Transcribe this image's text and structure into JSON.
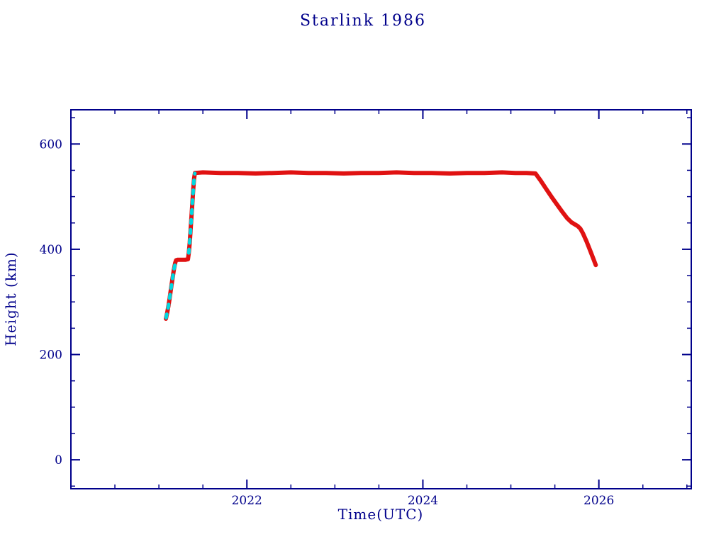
{
  "chart_data": {
    "type": "scatter",
    "title": "Starlink 1986",
    "xlabel": "Time(UTC)",
    "ylabel": "Height (km)",
    "xlim": [
      2020.0,
      2027.05
    ],
    "ylim": [
      -55,
      665
    ],
    "x_major_ticks": [
      2022,
      2024,
      2026
    ],
    "x_minor_step": 0.5,
    "y_major_ticks": [
      0,
      200,
      400,
      600
    ],
    "y_minor_step": 50,
    "grid": false,
    "legend": null,
    "axis_color": "#00008b",
    "background": "#ffffff",
    "series": [
      {
        "name": "height-track-red",
        "color": "#e01212",
        "style": "solid",
        "width": 6,
        "points": [
          [
            2021.08,
            268
          ],
          [
            2021.095,
            280
          ],
          [
            2021.11,
            294
          ],
          [
            2021.125,
            310
          ],
          [
            2021.14,
            328
          ],
          [
            2021.155,
            345
          ],
          [
            2021.17,
            361
          ],
          [
            2021.185,
            374
          ],
          [
            2021.195,
            379
          ],
          [
            2021.21,
            380
          ],
          [
            2021.24,
            380
          ],
          [
            2021.27,
            380
          ],
          [
            2021.3,
            380
          ],
          [
            2021.33,
            381
          ],
          [
            2021.34,
            393
          ],
          [
            2021.35,
            412
          ],
          [
            2021.36,
            436
          ],
          [
            2021.37,
            461
          ],
          [
            2021.38,
            487
          ],
          [
            2021.39,
            513
          ],
          [
            2021.4,
            535
          ],
          [
            2021.41,
            545
          ],
          [
            2021.5,
            546
          ],
          [
            2021.7,
            545
          ],
          [
            2021.9,
            545
          ],
          [
            2022.1,
            544
          ],
          [
            2022.3,
            545
          ],
          [
            2022.5,
            546
          ],
          [
            2022.7,
            545
          ],
          [
            2022.9,
            545
          ],
          [
            2023.1,
            544
          ],
          [
            2023.3,
            545
          ],
          [
            2023.5,
            545
          ],
          [
            2023.7,
            546
          ],
          [
            2023.9,
            545
          ],
          [
            2024.1,
            545
          ],
          [
            2024.3,
            544
          ],
          [
            2024.5,
            545
          ],
          [
            2024.7,
            545
          ],
          [
            2024.9,
            546
          ],
          [
            2025.05,
            545
          ],
          [
            2025.18,
            545
          ],
          [
            2025.28,
            544
          ],
          [
            2025.34,
            530
          ],
          [
            2025.4,
            515
          ],
          [
            2025.46,
            500
          ],
          [
            2025.52,
            486
          ],
          [
            2025.58,
            472
          ],
          [
            2025.64,
            459
          ],
          [
            2025.69,
            451
          ],
          [
            2025.73,
            447
          ],
          [
            2025.76,
            444
          ],
          [
            2025.79,
            439
          ],
          [
            2025.82,
            430
          ],
          [
            2025.86,
            415
          ],
          [
            2025.9,
            398
          ],
          [
            2025.94,
            381
          ],
          [
            2025.965,
            370
          ]
        ]
      },
      {
        "name": "height-track-cyan",
        "color": "#00d8e0",
        "style": "dashed",
        "width": 5,
        "segments": [
          [
            [
              2021.082,
              270
            ],
            [
              2021.11,
              294
            ],
            [
              2021.14,
              328
            ],
            [
              2021.17,
              361
            ],
            [
              2021.193,
              378
            ]
          ],
          [
            [
              2021.34,
              393
            ],
            [
              2021.36,
              436
            ],
            [
              2021.38,
              487
            ],
            [
              2021.4,
              535
            ],
            [
              2021.408,
              544
            ]
          ]
        ]
      }
    ]
  }
}
